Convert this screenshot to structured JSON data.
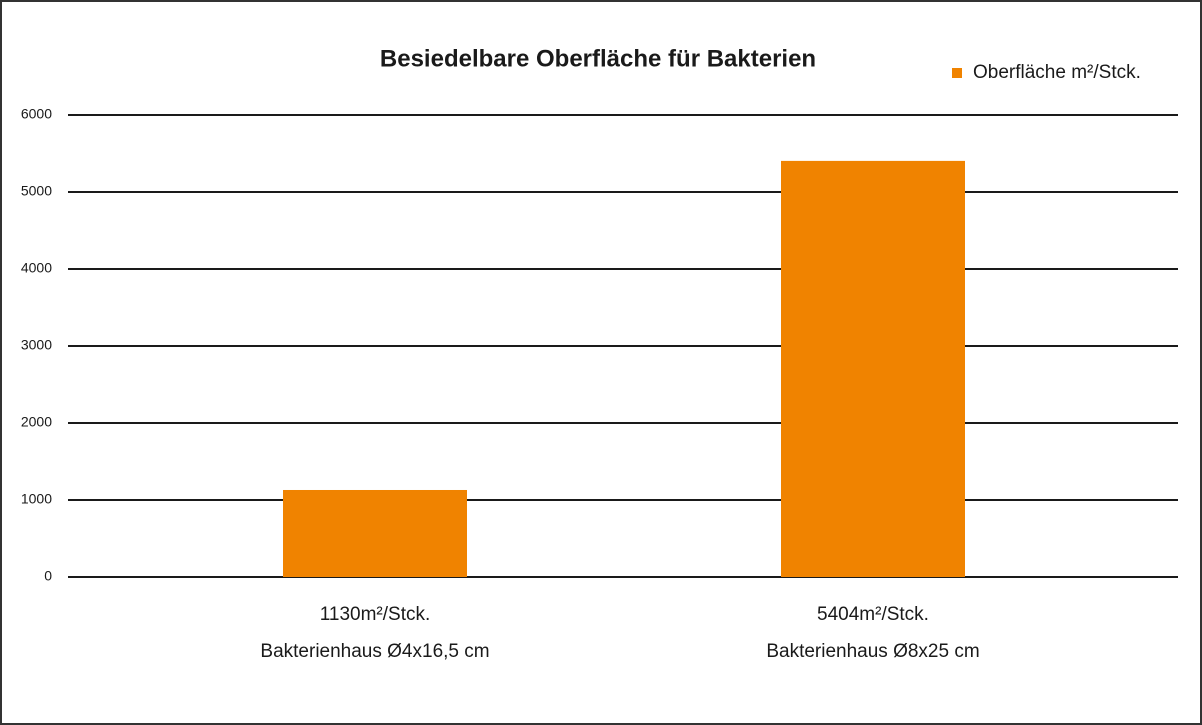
{
  "chart_data": {
    "type": "bar",
    "title": "Besiedelbare Oberfläche für Bakterien",
    "categories": [
      [
        "1130m²/Stck.",
        "Bakterienhaus Ø4x16,5 cm"
      ],
      [
        "5404m²/Stck.",
        "Bakterienhaus Ø8x25 cm"
      ]
    ],
    "series": [
      {
        "name": "Oberfläche m²/Stck.",
        "color": "#f08300",
        "values": [
          1130,
          5404
        ]
      }
    ],
    "ylim": [
      0,
      6000
    ],
    "yticks": [
      0,
      1000,
      2000,
      3000,
      4000,
      5000,
      6000
    ],
    "grid": true,
    "legend": "top-right"
  }
}
